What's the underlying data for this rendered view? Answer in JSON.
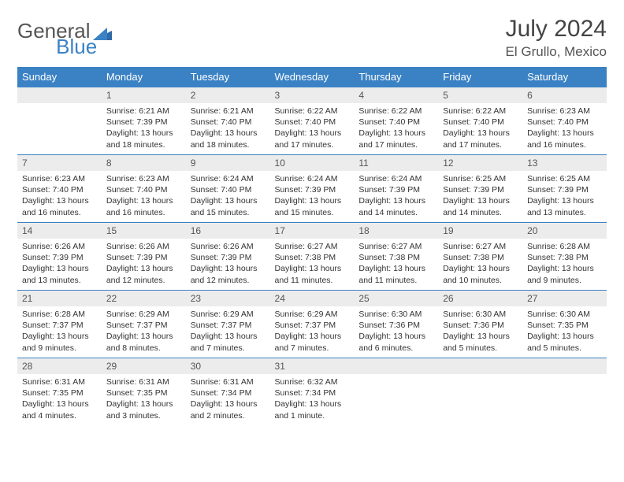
{
  "logo": {
    "word1": "General",
    "word2": "Blue"
  },
  "title": "July 2024",
  "location": "El Grullo, Mexico",
  "colors": {
    "header_bg": "#3b82c4",
    "header_text": "#ffffff",
    "daynum_bg": "#ececec",
    "border": "#3b82c4",
    "body_text": "#333333"
  },
  "day_names": [
    "Sunday",
    "Monday",
    "Tuesday",
    "Wednesday",
    "Thursday",
    "Friday",
    "Saturday"
  ],
  "weeks": [
    [
      {
        "n": "",
        "sunrise": "",
        "sunset": "",
        "daylight": ""
      },
      {
        "n": "1",
        "sunrise": "Sunrise: 6:21 AM",
        "sunset": "Sunset: 7:39 PM",
        "daylight": "Daylight: 13 hours and 18 minutes."
      },
      {
        "n": "2",
        "sunrise": "Sunrise: 6:21 AM",
        "sunset": "Sunset: 7:40 PM",
        "daylight": "Daylight: 13 hours and 18 minutes."
      },
      {
        "n": "3",
        "sunrise": "Sunrise: 6:22 AM",
        "sunset": "Sunset: 7:40 PM",
        "daylight": "Daylight: 13 hours and 17 minutes."
      },
      {
        "n": "4",
        "sunrise": "Sunrise: 6:22 AM",
        "sunset": "Sunset: 7:40 PM",
        "daylight": "Daylight: 13 hours and 17 minutes."
      },
      {
        "n": "5",
        "sunrise": "Sunrise: 6:22 AM",
        "sunset": "Sunset: 7:40 PM",
        "daylight": "Daylight: 13 hours and 17 minutes."
      },
      {
        "n": "6",
        "sunrise": "Sunrise: 6:23 AM",
        "sunset": "Sunset: 7:40 PM",
        "daylight": "Daylight: 13 hours and 16 minutes."
      }
    ],
    [
      {
        "n": "7",
        "sunrise": "Sunrise: 6:23 AM",
        "sunset": "Sunset: 7:40 PM",
        "daylight": "Daylight: 13 hours and 16 minutes."
      },
      {
        "n": "8",
        "sunrise": "Sunrise: 6:23 AM",
        "sunset": "Sunset: 7:40 PM",
        "daylight": "Daylight: 13 hours and 16 minutes."
      },
      {
        "n": "9",
        "sunrise": "Sunrise: 6:24 AM",
        "sunset": "Sunset: 7:40 PM",
        "daylight": "Daylight: 13 hours and 15 minutes."
      },
      {
        "n": "10",
        "sunrise": "Sunrise: 6:24 AM",
        "sunset": "Sunset: 7:39 PM",
        "daylight": "Daylight: 13 hours and 15 minutes."
      },
      {
        "n": "11",
        "sunrise": "Sunrise: 6:24 AM",
        "sunset": "Sunset: 7:39 PM",
        "daylight": "Daylight: 13 hours and 14 minutes."
      },
      {
        "n": "12",
        "sunrise": "Sunrise: 6:25 AM",
        "sunset": "Sunset: 7:39 PM",
        "daylight": "Daylight: 13 hours and 14 minutes."
      },
      {
        "n": "13",
        "sunrise": "Sunrise: 6:25 AM",
        "sunset": "Sunset: 7:39 PM",
        "daylight": "Daylight: 13 hours and 13 minutes."
      }
    ],
    [
      {
        "n": "14",
        "sunrise": "Sunrise: 6:26 AM",
        "sunset": "Sunset: 7:39 PM",
        "daylight": "Daylight: 13 hours and 13 minutes."
      },
      {
        "n": "15",
        "sunrise": "Sunrise: 6:26 AM",
        "sunset": "Sunset: 7:39 PM",
        "daylight": "Daylight: 13 hours and 12 minutes."
      },
      {
        "n": "16",
        "sunrise": "Sunrise: 6:26 AM",
        "sunset": "Sunset: 7:39 PM",
        "daylight": "Daylight: 13 hours and 12 minutes."
      },
      {
        "n": "17",
        "sunrise": "Sunrise: 6:27 AM",
        "sunset": "Sunset: 7:38 PM",
        "daylight": "Daylight: 13 hours and 11 minutes."
      },
      {
        "n": "18",
        "sunrise": "Sunrise: 6:27 AM",
        "sunset": "Sunset: 7:38 PM",
        "daylight": "Daylight: 13 hours and 11 minutes."
      },
      {
        "n": "19",
        "sunrise": "Sunrise: 6:27 AM",
        "sunset": "Sunset: 7:38 PM",
        "daylight": "Daylight: 13 hours and 10 minutes."
      },
      {
        "n": "20",
        "sunrise": "Sunrise: 6:28 AM",
        "sunset": "Sunset: 7:38 PM",
        "daylight": "Daylight: 13 hours and 9 minutes."
      }
    ],
    [
      {
        "n": "21",
        "sunrise": "Sunrise: 6:28 AM",
        "sunset": "Sunset: 7:37 PM",
        "daylight": "Daylight: 13 hours and 9 minutes."
      },
      {
        "n": "22",
        "sunrise": "Sunrise: 6:29 AM",
        "sunset": "Sunset: 7:37 PM",
        "daylight": "Daylight: 13 hours and 8 minutes."
      },
      {
        "n": "23",
        "sunrise": "Sunrise: 6:29 AM",
        "sunset": "Sunset: 7:37 PM",
        "daylight": "Daylight: 13 hours and 7 minutes."
      },
      {
        "n": "24",
        "sunrise": "Sunrise: 6:29 AM",
        "sunset": "Sunset: 7:37 PM",
        "daylight": "Daylight: 13 hours and 7 minutes."
      },
      {
        "n": "25",
        "sunrise": "Sunrise: 6:30 AM",
        "sunset": "Sunset: 7:36 PM",
        "daylight": "Daylight: 13 hours and 6 minutes."
      },
      {
        "n": "26",
        "sunrise": "Sunrise: 6:30 AM",
        "sunset": "Sunset: 7:36 PM",
        "daylight": "Daylight: 13 hours and 5 minutes."
      },
      {
        "n": "27",
        "sunrise": "Sunrise: 6:30 AM",
        "sunset": "Sunset: 7:35 PM",
        "daylight": "Daylight: 13 hours and 5 minutes."
      }
    ],
    [
      {
        "n": "28",
        "sunrise": "Sunrise: 6:31 AM",
        "sunset": "Sunset: 7:35 PM",
        "daylight": "Daylight: 13 hours and 4 minutes."
      },
      {
        "n": "29",
        "sunrise": "Sunrise: 6:31 AM",
        "sunset": "Sunset: 7:35 PM",
        "daylight": "Daylight: 13 hours and 3 minutes."
      },
      {
        "n": "30",
        "sunrise": "Sunrise: 6:31 AM",
        "sunset": "Sunset: 7:34 PM",
        "daylight": "Daylight: 13 hours and 2 minutes."
      },
      {
        "n": "31",
        "sunrise": "Sunrise: 6:32 AM",
        "sunset": "Sunset: 7:34 PM",
        "daylight": "Daylight: 13 hours and 1 minute."
      },
      {
        "n": "",
        "sunrise": "",
        "sunset": "",
        "daylight": ""
      },
      {
        "n": "",
        "sunrise": "",
        "sunset": "",
        "daylight": ""
      },
      {
        "n": "",
        "sunrise": "",
        "sunset": "",
        "daylight": ""
      }
    ]
  ]
}
